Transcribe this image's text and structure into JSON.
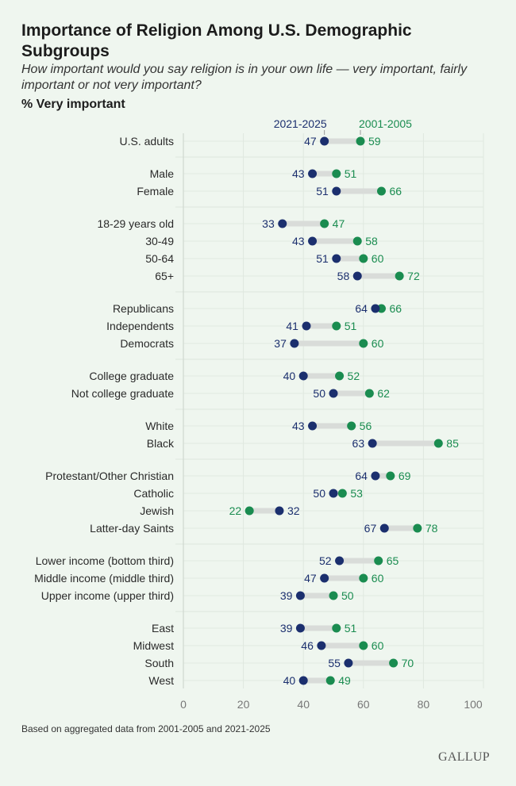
{
  "title": "Importance of Religion Among U.S. Demographic Subgroups",
  "subtitle": "How important would you say religion is in your own life — very important, fairly important or not very important?",
  "measure": "% Very important",
  "note": "Based on aggregated data from 2001-2005 and 2021-2025",
  "logo": "GALLUP",
  "chart_data": {
    "type": "dumbbell",
    "xlim": [
      0,
      100
    ],
    "xticks": [
      0,
      20,
      40,
      60,
      80,
      100
    ],
    "grid": true,
    "series": [
      {
        "name": "2021-2025",
        "color": "#1b2f6e"
      },
      {
        "name": "2001-2005",
        "color": "#1a8c50"
      }
    ],
    "groups": [
      [
        {
          "label": "U.S. adults",
          "v2021": 47,
          "v2001": 59
        }
      ],
      [
        {
          "label": "Male",
          "v2021": 43,
          "v2001": 51
        },
        {
          "label": "Female",
          "v2021": 51,
          "v2001": 66
        }
      ],
      [
        {
          "label": "18-29 years old",
          "v2021": 33,
          "v2001": 47
        },
        {
          "label": "30-49",
          "v2021": 43,
          "v2001": 58
        },
        {
          "label": "50-64",
          "v2021": 51,
          "v2001": 60
        },
        {
          "label": "65+",
          "v2021": 58,
          "v2001": 72
        }
      ],
      [
        {
          "label": "Republicans",
          "v2021": 64,
          "v2001": 66
        },
        {
          "label": "Independents",
          "v2021": 41,
          "v2001": 51
        },
        {
          "label": "Democrats",
          "v2021": 37,
          "v2001": 60
        }
      ],
      [
        {
          "label": "College graduate",
          "v2021": 40,
          "v2001": 52
        },
        {
          "label": "Not college graduate",
          "v2021": 50,
          "v2001": 62
        }
      ],
      [
        {
          "label": "White",
          "v2021": 43,
          "v2001": 56
        },
        {
          "label": "Black",
          "v2021": 63,
          "v2001": 85
        }
      ],
      [
        {
          "label": "Protestant/Other Christian",
          "v2021": 64,
          "v2001": 69
        },
        {
          "label": "Catholic",
          "v2021": 50,
          "v2001": 53
        },
        {
          "label": "Jewish",
          "v2021": 32,
          "v2001": 22
        },
        {
          "label": "Latter-day Saints",
          "v2021": 67,
          "v2001": 78
        }
      ],
      [
        {
          "label": "Lower income (bottom third)",
          "v2021": 52,
          "v2001": 65
        },
        {
          "label": "Middle income (middle third)",
          "v2021": 47,
          "v2001": 60
        },
        {
          "label": "Upper income (upper third)",
          "v2021": 39,
          "v2001": 50
        }
      ],
      [
        {
          "label": "East",
          "v2021": 39,
          "v2001": 51
        },
        {
          "label": "Midwest",
          "v2021": 46,
          "v2001": 60
        },
        {
          "label": "South",
          "v2021": 55,
          "v2001": 70
        },
        {
          "label": "West",
          "v2021": 40,
          "v2001": 49
        }
      ]
    ]
  }
}
